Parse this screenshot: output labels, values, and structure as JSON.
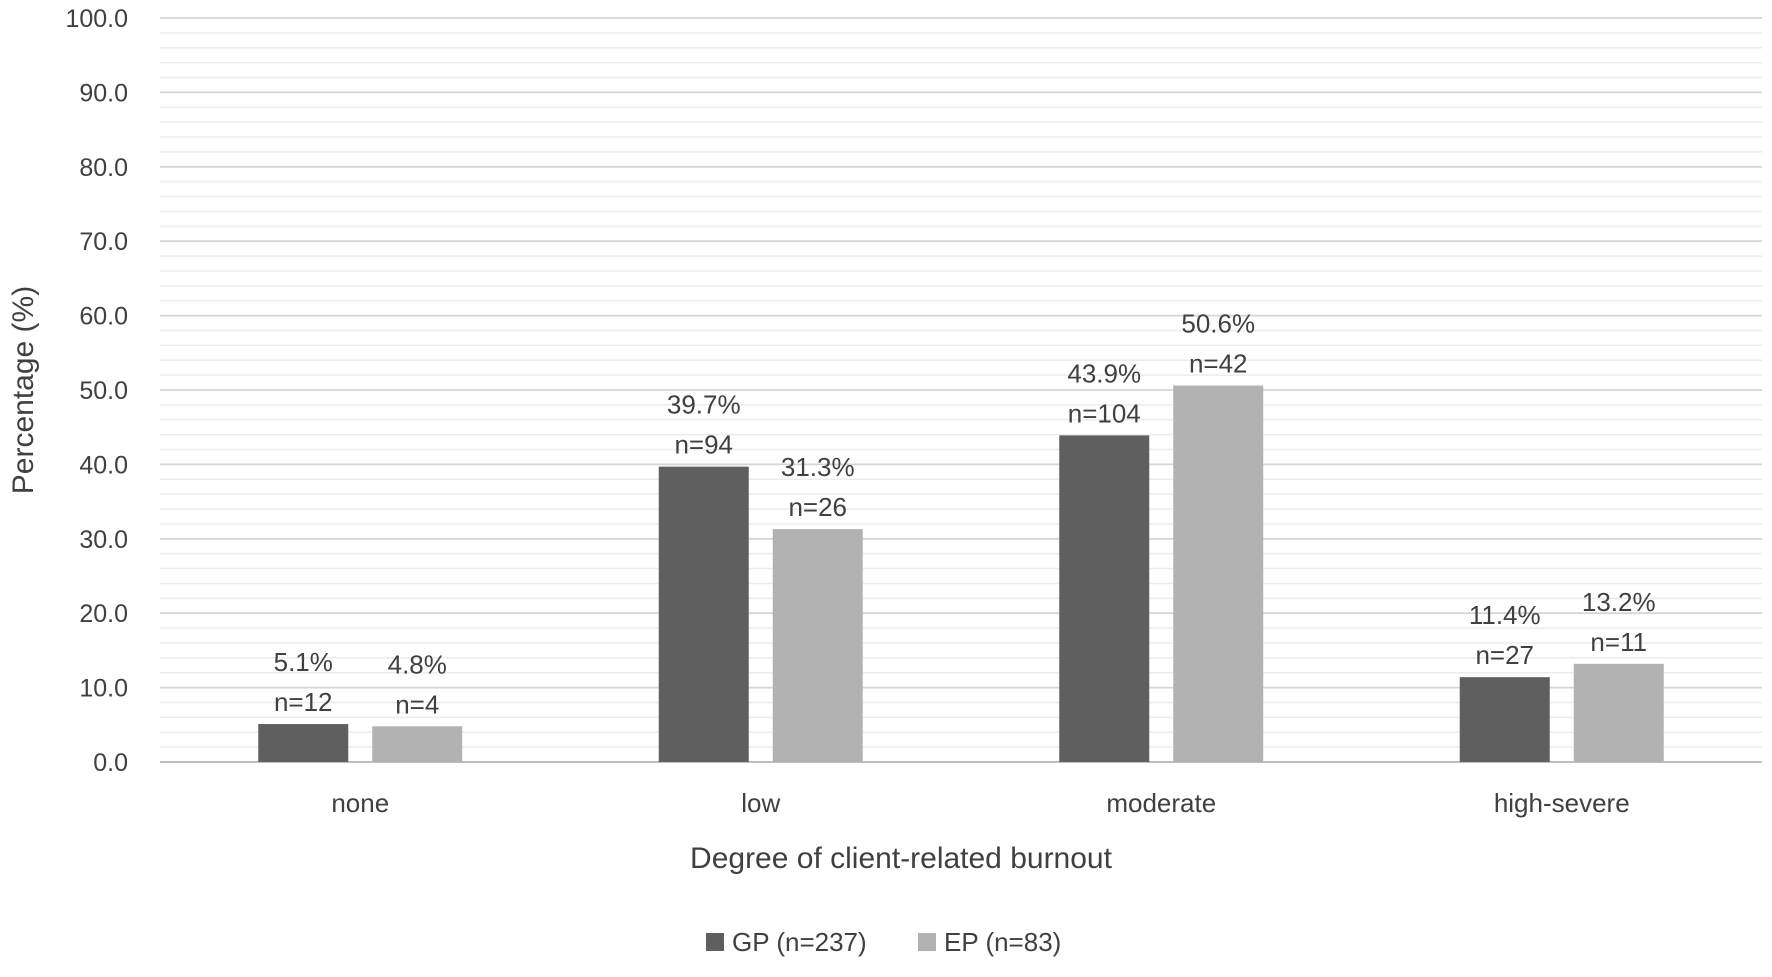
{
  "chart_data": {
    "type": "bar",
    "xlabel": "Degree of client-related burnout",
    "ylabel": "Percentage (%)",
    "ylim": [
      0,
      100
    ],
    "yticks": [
      "0.0",
      "10.0",
      "20.0",
      "30.0",
      "40.0",
      "50.0",
      "60.0",
      "70.0",
      "80.0",
      "90.0",
      "100.0"
    ],
    "grid": true,
    "legend_position": "bottom",
    "categories": [
      "none",
      "low",
      "moderate",
      "high-severe"
    ],
    "series": [
      {
        "name": "GP (n=237)",
        "color": "#5f5f5f",
        "values": [
          5.1,
          39.7,
          43.9,
          11.4
        ],
        "pct_labels": [
          "5.1%",
          "39.7%",
          "43.9%",
          "11.4%"
        ],
        "n_labels": [
          "n=12",
          "n=94",
          "n=104",
          "n=27"
        ]
      },
      {
        "name": "EP (n=83)",
        "color": "#b2b2b2",
        "values": [
          4.8,
          31.3,
          50.6,
          13.2
        ],
        "pct_labels": [
          "4.8%",
          "31.3%",
          "50.6%",
          "13.2%"
        ],
        "n_labels": [
          "n=4",
          "n=26",
          "n=42",
          "n=11"
        ]
      }
    ]
  }
}
